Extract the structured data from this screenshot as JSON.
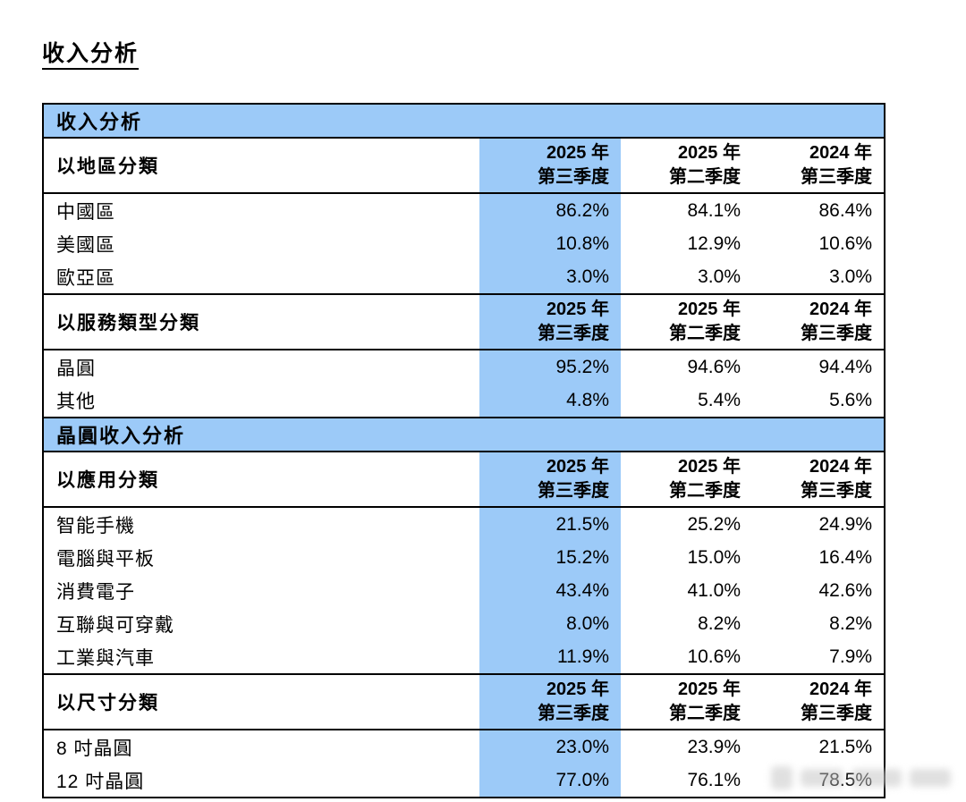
{
  "page_title": "收入分析",
  "colors": {
    "highlight_blue": "#9CCAF8",
    "border_black": "#000000",
    "background": "#FFFFFF"
  },
  "table": {
    "columns": [
      {
        "line1": "2025 年",
        "line2": "第三季度",
        "highlighted": true
      },
      {
        "line1": "2025 年",
        "line2": "第二季度",
        "highlighted": false
      },
      {
        "line1": "2024 年",
        "line2": "第三季度",
        "highlighted": false
      }
    ],
    "banners": [
      "收入分析",
      "晶圓收入分析"
    ],
    "groups": [
      {
        "label": "以地區分類",
        "rows": [
          {
            "label": "中國區",
            "values": [
              "86.2%",
              "84.1%",
              "86.4%"
            ]
          },
          {
            "label": "美國區",
            "values": [
              "10.8%",
              "12.9%",
              "10.6%"
            ]
          },
          {
            "label": "歐亞區",
            "values": [
              "3.0%",
              "3.0%",
              "3.0%"
            ]
          }
        ]
      },
      {
        "label": "以服務類型分類",
        "rows": [
          {
            "label": "晶圓",
            "values": [
              "95.2%",
              "94.6%",
              "94.4%"
            ]
          },
          {
            "label": "其他",
            "values": [
              "4.8%",
              "5.4%",
              "5.6%"
            ]
          }
        ]
      },
      {
        "label": "以應用分類",
        "rows": [
          {
            "label": "智能手機",
            "values": [
              "21.5%",
              "25.2%",
              "24.9%"
            ]
          },
          {
            "label": "電腦與平板",
            "values": [
              "15.2%",
              "15.0%",
              "16.4%"
            ]
          },
          {
            "label": "消費電子",
            "values": [
              "43.4%",
              "41.0%",
              "42.6%"
            ]
          },
          {
            "label": "互聯與可穿戴",
            "values": [
              "8.0%",
              "8.2%",
              "8.2%"
            ]
          },
          {
            "label": "工業與汽車",
            "values": [
              "11.9%",
              "10.6%",
              "7.9%"
            ]
          }
        ]
      },
      {
        "label": "以尺寸分類",
        "rows": [
          {
            "label": "8 吋晶圓",
            "values": [
              "23.0%",
              "23.9%",
              "21.5%"
            ]
          },
          {
            "label": "12 吋晶圓",
            "values": [
              "77.0%",
              "76.1%",
              "78.5%"
            ]
          }
        ]
      }
    ]
  },
  "watermark": {
    "visible": true,
    "text_legible": false
  }
}
